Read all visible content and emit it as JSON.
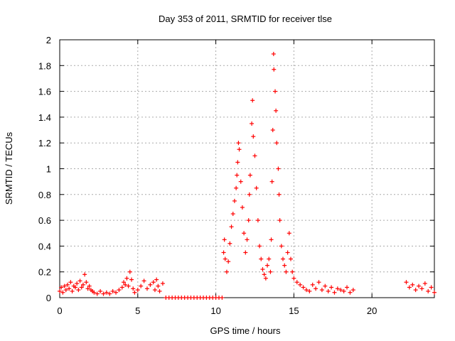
{
  "chart_data": {
    "type": "scatter",
    "title": "Day 353 of 2011, SRMTID for receiver tlse",
    "xlabel": "GPS time / hours",
    "ylabel": "SRMTID / TECUs",
    "xlim": [
      0,
      24
    ],
    "ylim": [
      0,
      2
    ],
    "xticks": [
      0,
      5,
      10,
      15,
      20
    ],
    "yticks": [
      0,
      0.2,
      0.4,
      0.6,
      0.8,
      1,
      1.2,
      1.4,
      1.6,
      1.8,
      2
    ],
    "xtick_labels": [
      "0",
      "5",
      "10",
      "15",
      "20"
    ],
    "ytick_labels": [
      "0",
      "0.2",
      "0.4",
      "0.6",
      "0.8",
      "1",
      "1.2",
      "1.4",
      "1.6",
      "1.8",
      "2"
    ],
    "grid": true,
    "marker": "+",
    "color": "#ff0000",
    "series": [
      {
        "points": [
          [
            0.0,
            0.05
          ],
          [
            0.1,
            0.08
          ],
          [
            0.2,
            0.04
          ],
          [
            0.3,
            0.09
          ],
          [
            0.4,
            0.06
          ],
          [
            0.5,
            0.1
          ],
          [
            0.6,
            0.07
          ],
          [
            0.7,
            0.12
          ],
          [
            0.8,
            0.05
          ],
          [
            0.9,
            0.09
          ],
          [
            1.0,
            0.08
          ],
          [
            1.1,
            0.11
          ],
          [
            1.2,
            0.06
          ],
          [
            1.3,
            0.13
          ],
          [
            1.4,
            0.08
          ],
          [
            1.5,
            0.1
          ],
          [
            1.6,
            0.18
          ],
          [
            1.7,
            0.12
          ],
          [
            1.8,
            0.07
          ],
          [
            1.9,
            0.09
          ],
          [
            2.0,
            0.06
          ],
          [
            2.1,
            0.05
          ],
          [
            2.2,
            0.04
          ],
          [
            2.4,
            0.03
          ],
          [
            2.6,
            0.05
          ],
          [
            2.8,
            0.03
          ],
          [
            3.0,
            0.04
          ],
          [
            3.2,
            0.03
          ],
          [
            3.4,
            0.05
          ],
          [
            3.6,
            0.04
          ],
          [
            3.8,
            0.06
          ],
          [
            4.0,
            0.08
          ],
          [
            4.1,
            0.12
          ],
          [
            4.2,
            0.1
          ],
          [
            4.3,
            0.15
          ],
          [
            4.4,
            0.09
          ],
          [
            4.5,
            0.2
          ],
          [
            4.6,
            0.14
          ],
          [
            4.7,
            0.07
          ],
          [
            4.8,
            0.04
          ],
          [
            5.0,
            0.06
          ],
          [
            5.2,
            0.09
          ],
          [
            5.4,
            0.13
          ],
          [
            5.6,
            0.07
          ],
          [
            5.8,
            0.1
          ],
          [
            6.0,
            0.12
          ],
          [
            6.1,
            0.06
          ],
          [
            6.2,
            0.14
          ],
          [
            6.3,
            0.09
          ],
          [
            6.4,
            0.05
          ],
          [
            6.6,
            0.11
          ],
          [
            6.8,
            0.0
          ],
          [
            7.0,
            0.0
          ],
          [
            7.2,
            0.0
          ],
          [
            7.4,
            0.0
          ],
          [
            7.6,
            0.0
          ],
          [
            7.8,
            0.0
          ],
          [
            8.0,
            0.0
          ],
          [
            8.2,
            0.0
          ],
          [
            8.4,
            0.0
          ],
          [
            8.6,
            0.0
          ],
          [
            8.8,
            0.0
          ],
          [
            9.0,
            0.0
          ],
          [
            9.2,
            0.0
          ],
          [
            9.4,
            0.0
          ],
          [
            9.6,
            0.0
          ],
          [
            9.8,
            0.0
          ],
          [
            10.0,
            0.0
          ],
          [
            10.2,
            0.0
          ],
          [
            10.4,
            0.0
          ],
          [
            10.5,
            0.35
          ],
          [
            10.55,
            0.45
          ],
          [
            10.6,
            0.3
          ],
          [
            10.7,
            0.2
          ],
          [
            10.8,
            0.28
          ],
          [
            10.9,
            0.42
          ],
          [
            11.0,
            0.55
          ],
          [
            11.1,
            0.65
          ],
          [
            11.2,
            0.75
          ],
          [
            11.3,
            0.85
          ],
          [
            11.35,
            0.95
          ],
          [
            11.4,
            1.05
          ],
          [
            11.45,
            1.2
          ],
          [
            11.5,
            1.15
          ],
          [
            11.6,
            0.9
          ],
          [
            11.7,
            0.7
          ],
          [
            11.8,
            0.5
          ],
          [
            11.9,
            0.35
          ],
          [
            12.0,
            0.45
          ],
          [
            12.1,
            0.6
          ],
          [
            12.15,
            0.8
          ],
          [
            12.2,
            0.95
          ],
          [
            12.3,
            1.35
          ],
          [
            12.35,
            1.53
          ],
          [
            12.4,
            1.25
          ],
          [
            12.5,
            1.1
          ],
          [
            12.6,
            0.85
          ],
          [
            12.7,
            0.6
          ],
          [
            12.8,
            0.4
          ],
          [
            12.9,
            0.3
          ],
          [
            13.0,
            0.22
          ],
          [
            13.1,
            0.18
          ],
          [
            13.2,
            0.15
          ],
          [
            13.3,
            0.25
          ],
          [
            13.4,
            0.3
          ],
          [
            13.5,
            0.2
          ],
          [
            13.55,
            0.45
          ],
          [
            13.6,
            0.9
          ],
          [
            13.65,
            1.3
          ],
          [
            13.7,
            1.89
          ],
          [
            13.72,
            1.77
          ],
          [
            13.8,
            1.6
          ],
          [
            13.85,
            1.45
          ],
          [
            13.9,
            1.2
          ],
          [
            14.0,
            1.0
          ],
          [
            14.05,
            0.8
          ],
          [
            14.1,
            0.6
          ],
          [
            14.2,
            0.4
          ],
          [
            14.3,
            0.3
          ],
          [
            14.4,
            0.25
          ],
          [
            14.5,
            0.2
          ],
          [
            14.6,
            0.35
          ],
          [
            14.7,
            0.5
          ],
          [
            14.8,
            0.3
          ],
          [
            14.9,
            0.2
          ],
          [
            15.0,
            0.15
          ],
          [
            15.2,
            0.12
          ],
          [
            15.4,
            0.1
          ],
          [
            15.6,
            0.08
          ],
          [
            15.8,
            0.06
          ],
          [
            16.0,
            0.05
          ],
          [
            16.2,
            0.1
          ],
          [
            16.4,
            0.07
          ],
          [
            16.6,
            0.12
          ],
          [
            16.8,
            0.06
          ],
          [
            17.0,
            0.09
          ],
          [
            17.2,
            0.05
          ],
          [
            17.4,
            0.08
          ],
          [
            17.6,
            0.04
          ],
          [
            17.8,
            0.07
          ],
          [
            18.0,
            0.06
          ],
          [
            18.2,
            0.05
          ],
          [
            18.4,
            0.08
          ],
          [
            18.6,
            0.04
          ],
          [
            18.8,
            0.06
          ],
          [
            22.2,
            0.12
          ],
          [
            22.4,
            0.08
          ],
          [
            22.6,
            0.1
          ],
          [
            22.8,
            0.06
          ],
          [
            23.0,
            0.09
          ],
          [
            23.2,
            0.07
          ],
          [
            23.4,
            0.11
          ],
          [
            23.6,
            0.05
          ],
          [
            23.8,
            0.08
          ],
          [
            24.0,
            0.04
          ]
        ]
      }
    ]
  }
}
